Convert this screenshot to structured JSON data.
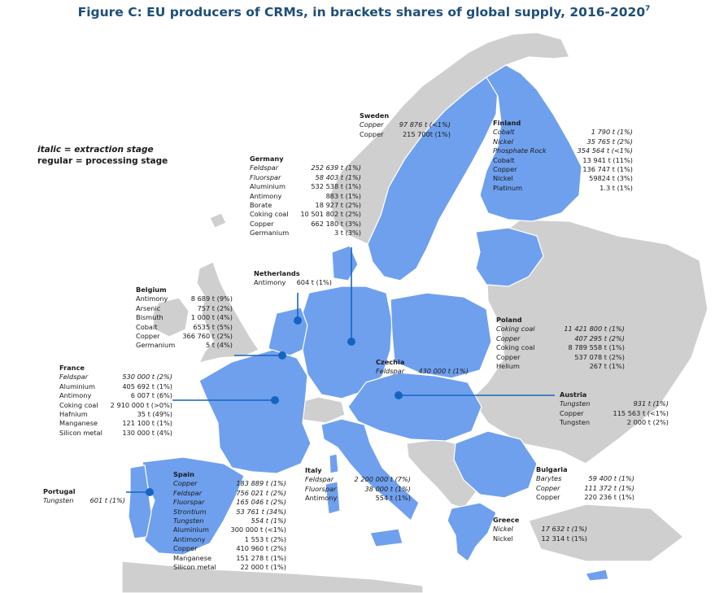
{
  "title": "Figure C: EU producers of CRMs, in brackets shares of global supply, 2016-2020",
  "title_sup": "7",
  "legend": {
    "line1": "italic = extraction stage",
    "line2": "regular = processing stage"
  },
  "colors": {
    "eu": "#6fa0ee",
    "non_eu": "#cfcfcf",
    "sea": "#ffffff",
    "border": "#ffffff",
    "marker": "#1565c0"
  },
  "countries": {
    "sweden": {
      "name": "Sweden",
      "rows": [
        {
          "m": "Copper",
          "v": "97 876 t (<1%)",
          "ext": true
        },
        {
          "m": "Copper",
          "v": "215 700t  (1%)",
          "ext": false
        }
      ]
    },
    "finland": {
      "name": "Finland",
      "rows": [
        {
          "m": "Cobalt",
          "v": "1 790 t   (1%)",
          "ext": true
        },
        {
          "m": "Nickel",
          "v": "35 765 t  (2%)",
          "ext": true
        },
        {
          "m": "Phosphate Rock",
          "v": "354 564 t (<1%)",
          "ext": true
        },
        {
          "m": "Cobalt",
          "v": "13 941 t (11%)",
          "ext": false
        },
        {
          "m": "Copper",
          "v": "136 747 t  (1%)",
          "ext": false
        },
        {
          "m": "Nickel",
          "v": "59824 t  (3%)",
          "ext": false
        },
        {
          "m": "Platinum",
          "v": "1.3 t    (1%)",
          "ext": false
        }
      ]
    },
    "germany": {
      "name": "Germany",
      "rows": [
        {
          "m": "Feldspar",
          "v": "252 639 t (1%)",
          "ext": true
        },
        {
          "m": "Fluorspar",
          "v": "58 403 t (1%)",
          "ext": true
        },
        {
          "m": "Aluminium",
          "v": "532 538 t (1%)",
          "ext": false
        },
        {
          "m": "Antimony",
          "v": "883 t (1%)",
          "ext": false
        },
        {
          "m": "Borate",
          "v": "18 927 t (2%)",
          "ext": false
        },
        {
          "m": "Coking coal",
          "v": "10 501 802 t (2%)",
          "ext": false
        },
        {
          "m": "Copper",
          "v": "662 180 t (3%)",
          "ext": false
        },
        {
          "m": "Germanium",
          "v": "3 t (3%)",
          "ext": false
        }
      ]
    },
    "netherlands": {
      "name": "Netherlands",
      "rows": [
        {
          "m": "Antimony",
          "v": "604 t (1%)",
          "ext": false
        }
      ]
    },
    "belgium": {
      "name": "Belgium",
      "rows": [
        {
          "m": "Antimony",
          "v": "8 689 t (9%)",
          "ext": false
        },
        {
          "m": "Arsenic",
          "v": "757 t (2%)",
          "ext": false
        },
        {
          "m": "Bismuth",
          "v": "1 000 t (4%)",
          "ext": false
        },
        {
          "m": "Cobalt",
          "v": "6535 t (5%)",
          "ext": false
        },
        {
          "m": "Copper",
          "v": "366 760 t (2%)",
          "ext": false
        },
        {
          "m": "Germanium",
          "v": "5 t (4%)",
          "ext": false
        }
      ]
    },
    "poland": {
      "name": "Poland",
      "rows": [
        {
          "m": "Coking coal",
          "v": "11 421 800 t (1%)",
          "ext": true
        },
        {
          "m": "Copper",
          "v": "407 295 t (2%)",
          "ext": true
        },
        {
          "m": "Coking coal",
          "v": "8 789 558 t (1%)",
          "ext": false
        },
        {
          "m": "Copper",
          "v": "537 078 t (2%)",
          "ext": false
        },
        {
          "m": "Helium",
          "v": "267 t (1%)",
          "ext": false
        }
      ]
    },
    "czechia": {
      "name": "Czechia",
      "rows": [
        {
          "m": "Feldspar",
          "v": "430 000 t (1%)",
          "ext": true
        }
      ]
    },
    "france": {
      "name": "France",
      "rows": [
        {
          "m": "Feldspar",
          "v": "530 000 t (2%)",
          "ext": true
        },
        {
          "m": "Aluminium",
          "v": "405 692 t (1%)",
          "ext": false
        },
        {
          "m": "Antimony",
          "v": "6 007 t (6%)",
          "ext": false
        },
        {
          "m": "Coking coal",
          "v": "2 910 000 t (>0%)",
          "ext": false
        },
        {
          "m": "Hafnium",
          "v": "35 t (49%)",
          "ext": false
        },
        {
          "m": "Manganese",
          "v": "121 100 t (1%)",
          "ext": false
        },
        {
          "m": "Silicon metal",
          "v": "130 000 t (4%)",
          "ext": false
        }
      ]
    },
    "austria": {
      "name": "Austria",
      "rows": [
        {
          "m": "Tungsten",
          "v": "931 t  (1%)",
          "ext": true
        },
        {
          "m": "Copper",
          "v": "115 563 t (<1%)",
          "ext": false
        },
        {
          "m": "Tungsten",
          "v": "2 000 t  (2%)",
          "ext": false
        }
      ]
    },
    "spain": {
      "name": "Spain",
      "rows": [
        {
          "m": "Copper",
          "v": "183 889 t (1%)",
          "ext": true
        },
        {
          "m": "Feldspar",
          "v": "756 021 t (2%)",
          "ext": true
        },
        {
          "m": "Fluorspar",
          "v": "165 046 t (2%)",
          "ext": true
        },
        {
          "m": "Strontium",
          "v": "53 761 t (34%)",
          "ext": true
        },
        {
          "m": "Tungsten",
          "v": "554 t (1%)",
          "ext": true
        },
        {
          "m": "Aluminium",
          "v": "300 000 t (<1%)",
          "ext": false
        },
        {
          "m": "Antimony",
          "v": "1 553 t (2%)",
          "ext": false
        },
        {
          "m": "Copper",
          "v": "410 960 t (2%)",
          "ext": false
        },
        {
          "m": "Manganese",
          "v": "151 278 t (1%)",
          "ext": false
        },
        {
          "m": "Silicon metal",
          "v": "22 000 t (1%)",
          "ext": false
        }
      ]
    },
    "italy": {
      "name": "Italy",
      "rows": [
        {
          "m": "Feldspar",
          "v": "2 200 000 t (7%)",
          "ext": true
        },
        {
          "m": "Fluorspar",
          "v": "38 000 t (1%)",
          "ext": true
        },
        {
          "m": "Antimony",
          "v": "554 t (1%)",
          "ext": false
        }
      ]
    },
    "portugal": {
      "name": "Portugal",
      "rows": [
        {
          "m": "Tungsten",
          "v": "601 t (1%)",
          "ext": true
        }
      ]
    },
    "bulgaria": {
      "name": "Bulgaria",
      "rows": [
        {
          "m": "Barytes",
          "v": "59 400 t (1%)",
          "ext": true
        },
        {
          "m": "Copper",
          "v": "111 372 t (1%)",
          "ext": true
        },
        {
          "m": "Copper",
          "v": "220 236 t (1%)",
          "ext": false
        }
      ]
    },
    "greece": {
      "name": "Greece",
      "rows": [
        {
          "m": "Nickel",
          "v": "17 632 t (1%)",
          "ext": true
        },
        {
          "m": "Nickel",
          "v": "12 314 t (1%)",
          "ext": false
        }
      ]
    }
  }
}
